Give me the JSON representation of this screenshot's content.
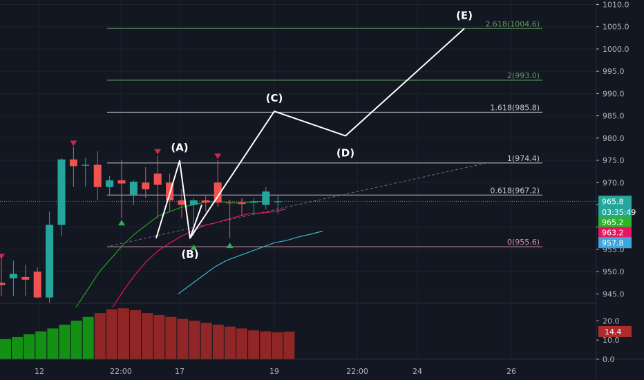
{
  "chart_data": {
    "type": "candlestick",
    "price_axis": {
      "ticks": [
        "945.0",
        "950.0",
        "955.0",
        "960.0",
        "965.0",
        "970.0",
        "975.0",
        "980.0",
        "985.0",
        "990.0",
        "995.0",
        "1000.0",
        "1005.0",
        "1010.0"
      ],
      "range": [
        943.2,
        1011.0
      ]
    },
    "time_axis": {
      "ticks": [
        "12",
        "22:00",
        "17",
        "19",
        "22:00",
        "24",
        "26"
      ]
    },
    "candles": [
      {
        "o": 947.5,
        "h": 953.0,
        "l": 944.5,
        "c": 947.0
      },
      {
        "o": 948.5,
        "h": 952.5,
        "l": 944.5,
        "c": 949.5
      },
      {
        "o": 948.8,
        "h": 951.5,
        "l": 944.5,
        "c": 948.2
      },
      {
        "o": 950.0,
        "h": 951.0,
        "l": 944.0,
        "c": 944.2
      },
      {
        "o": 944.2,
        "h": 963.5,
        "l": 943.0,
        "c": 960.5
      },
      {
        "o": 960.5,
        "h": 975.5,
        "l": 958.0,
        "c": 975.2
      },
      {
        "o": 975.2,
        "h": 978.0,
        "l": 969.0,
        "c": 973.7
      },
      {
        "o": 973.8,
        "h": 975.5,
        "l": 969.0,
        "c": 974.0
      },
      {
        "o": 974.0,
        "h": 977.0,
        "l": 966.0,
        "c": 969.0
      },
      {
        "o": 969.0,
        "h": 971.5,
        "l": 967.0,
        "c": 970.5
      },
      {
        "o": 970.5,
        "h": 975.0,
        "l": 962.0,
        "c": 969.8
      },
      {
        "o": 967.3,
        "h": 970.5,
        "l": 965.0,
        "c": 970.2
      },
      {
        "o": 970.0,
        "h": 973.5,
        "l": 966.5,
        "c": 968.5
      },
      {
        "o": 972.0,
        "h": 976.0,
        "l": 962.0,
        "c": 969.5
      },
      {
        "o": 970.0,
        "h": 972.0,
        "l": 963.5,
        "c": 966.0
      },
      {
        "o": 966.0,
        "h": 968.5,
        "l": 962.0,
        "c": 965.0
      },
      {
        "o": 965.0,
        "h": 966.5,
        "l": 958.0,
        "c": 966.0
      },
      {
        "o": 966.0,
        "h": 967.0,
        "l": 963.5,
        "c": 965.5
      },
      {
        "o": 970.0,
        "h": 975.0,
        "l": 964.5,
        "c": 965.5
      },
      {
        "o": 965.5,
        "h": 966.2,
        "l": 957.5,
        "c": 965.4
      },
      {
        "o": 965.6,
        "h": 966.5,
        "l": 962.5,
        "c": 965.2
      },
      {
        "o": 965.5,
        "h": 966.5,
        "l": 963.0,
        "c": 965.8
      },
      {
        "o": 965.0,
        "h": 969.0,
        "l": 964.0,
        "c": 968.0
      },
      {
        "o": 965.6,
        "h": 967.0,
        "l": 963.0,
        "c": 965.8
      }
    ],
    "ma_green": [
      942.0,
      946.0,
      950.0,
      953.0,
      956.0,
      958.5,
      960.5,
      962.5,
      963.5,
      964.5,
      965.0,
      965.6,
      965.8,
      965.5,
      965.4,
      965.6,
      965.8
    ],
    "ma_red": [
      942.0,
      946.0,
      949.5,
      952.5,
      954.8,
      956.5,
      958.0,
      959.3,
      960.4,
      961.0,
      961.8,
      962.5,
      963.1,
      963.2,
      963.5,
      964.0
    ],
    "ma_cyan": [
      945.0,
      947.0,
      949.0,
      951.0,
      952.5,
      953.5,
      954.5,
      955.5,
      956.5,
      957.0,
      957.8,
      958.4,
      959.1
    ],
    "fib_levels": [
      {
        "label": "2.618(1004.6)",
        "price": 1004.6,
        "color": "#5d9f5c"
      },
      {
        "label": "2(993.0)",
        "price": 993.0,
        "color": "#5d9f5c"
      },
      {
        "label": "1.618(985.8)",
        "price": 985.8,
        "color": "#c5c8cf"
      },
      {
        "label": "1(974.4)",
        "price": 974.4,
        "color": "#c5c8cf"
      },
      {
        "label": "0.618(967.2)",
        "price": 967.2,
        "color": "#c5c8cf"
      },
      {
        "label": "0(955.6)",
        "price": 955.6,
        "color": "#d393ab"
      }
    ],
    "wave_points": [
      {
        "label": "",
        "price": 957.5
      },
      {
        "label": "(A)",
        "price": 974.9
      },
      {
        "label": "(B)",
        "price": 957.5
      },
      {
        "label": "(C)",
        "price": 986.0
      },
      {
        "label": "(D)",
        "price": 980.5
      },
      {
        "label": "(E)",
        "price": 1004.6
      }
    ],
    "volume": {
      "ticks": [
        "20.0",
        "10.0",
        "0.0"
      ],
      "range": [
        0,
        28
      ],
      "values": [
        10.5,
        11.5,
        13,
        14.5,
        16,
        18,
        20,
        22,
        24,
        26,
        26.5,
        25.5,
        24,
        23,
        22,
        21,
        20,
        19,
        18,
        17,
        16,
        15,
        14.5,
        14,
        14.4
      ],
      "bull_count": 8
    },
    "badges": [
      {
        "value": "965.8",
        "price": 965.8,
        "color": "#26a69a"
      },
      {
        "value": "03:35:49",
        "price": 963.4,
        "color": "#26a69a"
      },
      {
        "value": "965.2",
        "price": 961.1,
        "color": "#2ab52a"
      },
      {
        "value": "963.2",
        "price": 958.8,
        "color": "#e8145f"
      },
      {
        "value": "957.8",
        "price": 956.5,
        "color": "#3ba7dc"
      }
    ],
    "volume_badge": {
      "value": "14.4",
      "color": "#b02c2c"
    },
    "markers": [
      {
        "kind": "down",
        "candle": 6,
        "price": 978.8
      },
      {
        "kind": "down",
        "candle": 13,
        "price": 976.9
      },
      {
        "kind": "down",
        "candle": 18,
        "price": 975.9
      },
      {
        "kind": "down",
        "candle": 0,
        "price": 953.4
      },
      {
        "kind": "up",
        "candle": 10,
        "price": 961.0
      },
      {
        "kind": "up",
        "candle": 16,
        "price": 955.5
      },
      {
        "kind": "up",
        "candle": 19,
        "price": 955.9
      }
    ]
  }
}
